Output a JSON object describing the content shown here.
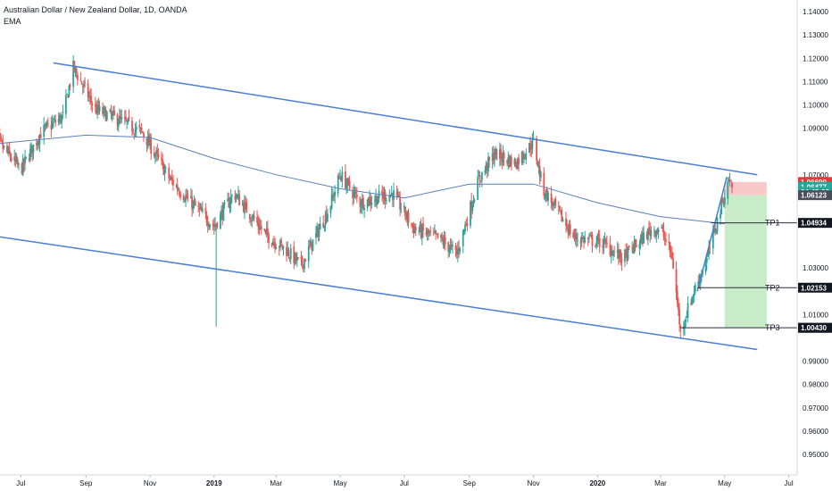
{
  "header": {
    "title": "Australian Dollar / New Zealand Dollar, 1D, OANDA",
    "indicator": "EMA"
  },
  "colors": {
    "up": "#26a69a",
    "down": "#ef5350",
    "channel": "#4a7fd4",
    "ema": "#5b7fb8",
    "target_zone": "#c8ebc8",
    "stop_zone": "#f7c9c9",
    "tag_red": "#e53935",
    "tag_teal": "#26a69a",
    "tag_green": "#2e9e3a",
    "tag_dark": "#131722",
    "tag_gray": "#4a4e5a"
  },
  "price_axis": {
    "ticks": [
      "1.14000",
      "1.13000",
      "1.12000",
      "1.11000",
      "1.10000",
      "1.09000",
      "1.07000",
      "1.03000",
      "1.01000",
      "0.99000",
      "0.98000",
      "0.97000",
      "0.96000",
      "0.95000"
    ],
    "tags": [
      {
        "label": "1.06690",
        "value": 1.0669,
        "color": "#e53935"
      },
      {
        "label": "1.06477",
        "value": 1.06477,
        "color": "#26a69a"
      },
      {
        "label": "04:49:03",
        "value": 1.0626,
        "color": "#26a69a"
      },
      {
        "label": "1.06123",
        "value": 1.06123,
        "color": "#4a4e5a"
      },
      {
        "label": "1.04934",
        "value": 1.04934,
        "color": "#131722"
      },
      {
        "label": "1.02153",
        "value": 1.02153,
        "color": "#131722"
      },
      {
        "label": "1.00435",
        "value": 1.00435,
        "color": "#2e9e3a"
      },
      {
        "label": "1.00430",
        "value": 1.0043,
        "color": "#131722"
      }
    ]
  },
  "time_axis": {
    "labels": [
      "Jul",
      "Sep",
      "Nov",
      "2019",
      "Mar",
      "May",
      "Jul",
      "Sep",
      "Nov",
      "2020",
      "Mar",
      "May",
      "Jul"
    ]
  },
  "targets": [
    {
      "label": "TP1",
      "value": 1.04934
    },
    {
      "label": "TP2",
      "value": 1.02153
    },
    {
      "label": "TP3",
      "value": 1.00435
    }
  ],
  "chart_data": {
    "type": "candlestick",
    "title": "Australian Dollar / New Zealand Dollar, 1D, OANDA",
    "ylim": [
      0.945,
      1.145
    ],
    "x_axis": [
      "Jul 2018",
      "Jul 2020"
    ],
    "price_path": [
      {
        "date": "2018-06",
        "close": 1.089
      },
      {
        "date": "2018-07",
        "close": 1.072
      },
      {
        "date": "2018-07-20",
        "close": 1.088
      },
      {
        "date": "2018-08-10",
        "close": 1.095
      },
      {
        "date": "2018-08-20",
        "close": 1.116
      },
      {
        "date": "2018-09-10",
        "close": 1.098
      },
      {
        "date": "2018-10-05",
        "close": 1.093
      },
      {
        "date": "2018-10-25",
        "close": 1.088
      },
      {
        "date": "2018-11-20",
        "close": 1.068
      },
      {
        "date": "2018-12-10",
        "close": 1.058
      },
      {
        "date": "2019-01-01",
        "close": 1.048
      },
      {
        "date": "2019-01-20",
        "close": 1.062
      },
      {
        "date": "2019-02-20",
        "close": 1.044
      },
      {
        "date": "2019-03-10",
        "close": 1.038
      },
      {
        "date": "2019-03-25",
        "close": 1.031
      },
      {
        "date": "2019-04-20",
        "close": 1.055
      },
      {
        "date": "2019-05-01",
        "close": 1.07
      },
      {
        "date": "2019-05-20",
        "close": 1.058
      },
      {
        "date": "2019-06-20",
        "close": 1.062
      },
      {
        "date": "2019-07-10",
        "close": 1.047
      },
      {
        "date": "2019-08-05",
        "close": 1.042
      },
      {
        "date": "2019-08-20",
        "close": 1.036
      },
      {
        "date": "2019-09-10",
        "close": 1.068
      },
      {
        "date": "2019-09-25",
        "close": 1.079
      },
      {
        "date": "2019-10-15",
        "close": 1.075
      },
      {
        "date": "2019-11-01",
        "close": 1.084
      },
      {
        "date": "2019-11-10",
        "close": 1.064
      },
      {
        "date": "2019-12-10",
        "close": 1.043
      },
      {
        "date": "2020-01-05",
        "close": 1.041
      },
      {
        "date": "2020-01-25",
        "close": 1.034
      },
      {
        "date": "2020-02-20",
        "close": 1.046
      },
      {
        "date": "2020-03-01",
        "close": 1.047
      },
      {
        "date": "2020-03-12",
        "close": 1.035
      },
      {
        "date": "2020-03-20",
        "close": 1.003
      },
      {
        "date": "2020-04-01",
        "close": 1.019
      },
      {
        "date": "2020-04-15",
        "close": 1.035
      },
      {
        "date": "2020-04-25",
        "close": 1.052
      },
      {
        "date": "2020-05-05",
        "close": 1.068
      },
      {
        "date": "2020-05-10",
        "close": 1.064
      }
    ],
    "ema_path": [
      {
        "date": "2018-06",
        "value": 1.083
      },
      {
        "date": "2018-09",
        "value": 1.087
      },
      {
        "date": "2018-11",
        "value": 1.086
      },
      {
        "date": "2019-01",
        "value": 1.077
      },
      {
        "date": "2019-03",
        "value": 1.07
      },
      {
        "date": "2019-05",
        "value": 1.064
      },
      {
        "date": "2019-07",
        "value": 1.06
      },
      {
        "date": "2019-09",
        "value": 1.066
      },
      {
        "date": "2019-11",
        "value": 1.066
      },
      {
        "date": "2020-01",
        "value": 1.058
      },
      {
        "date": "2020-03",
        "value": 1.052
      },
      {
        "date": "2020-05",
        "value": 1.049
      }
    ],
    "channel": {
      "upper": [
        {
          "date": "2018-08",
          "value": 1.118
        },
        {
          "date": "2020-06",
          "value": 1.07
        }
      ],
      "lower": [
        {
          "date": "2018-06",
          "value": 1.044
        },
        {
          "date": "2020-06",
          "value": 0.995
        }
      ]
    },
    "trade_setup": {
      "entry": 1.06123,
      "stop": 1.0669,
      "targets": [
        1.04934,
        1.02153,
        1.00435
      ]
    },
    "annotations": [
      "TP1",
      "TP2",
      "TP3"
    ]
  }
}
